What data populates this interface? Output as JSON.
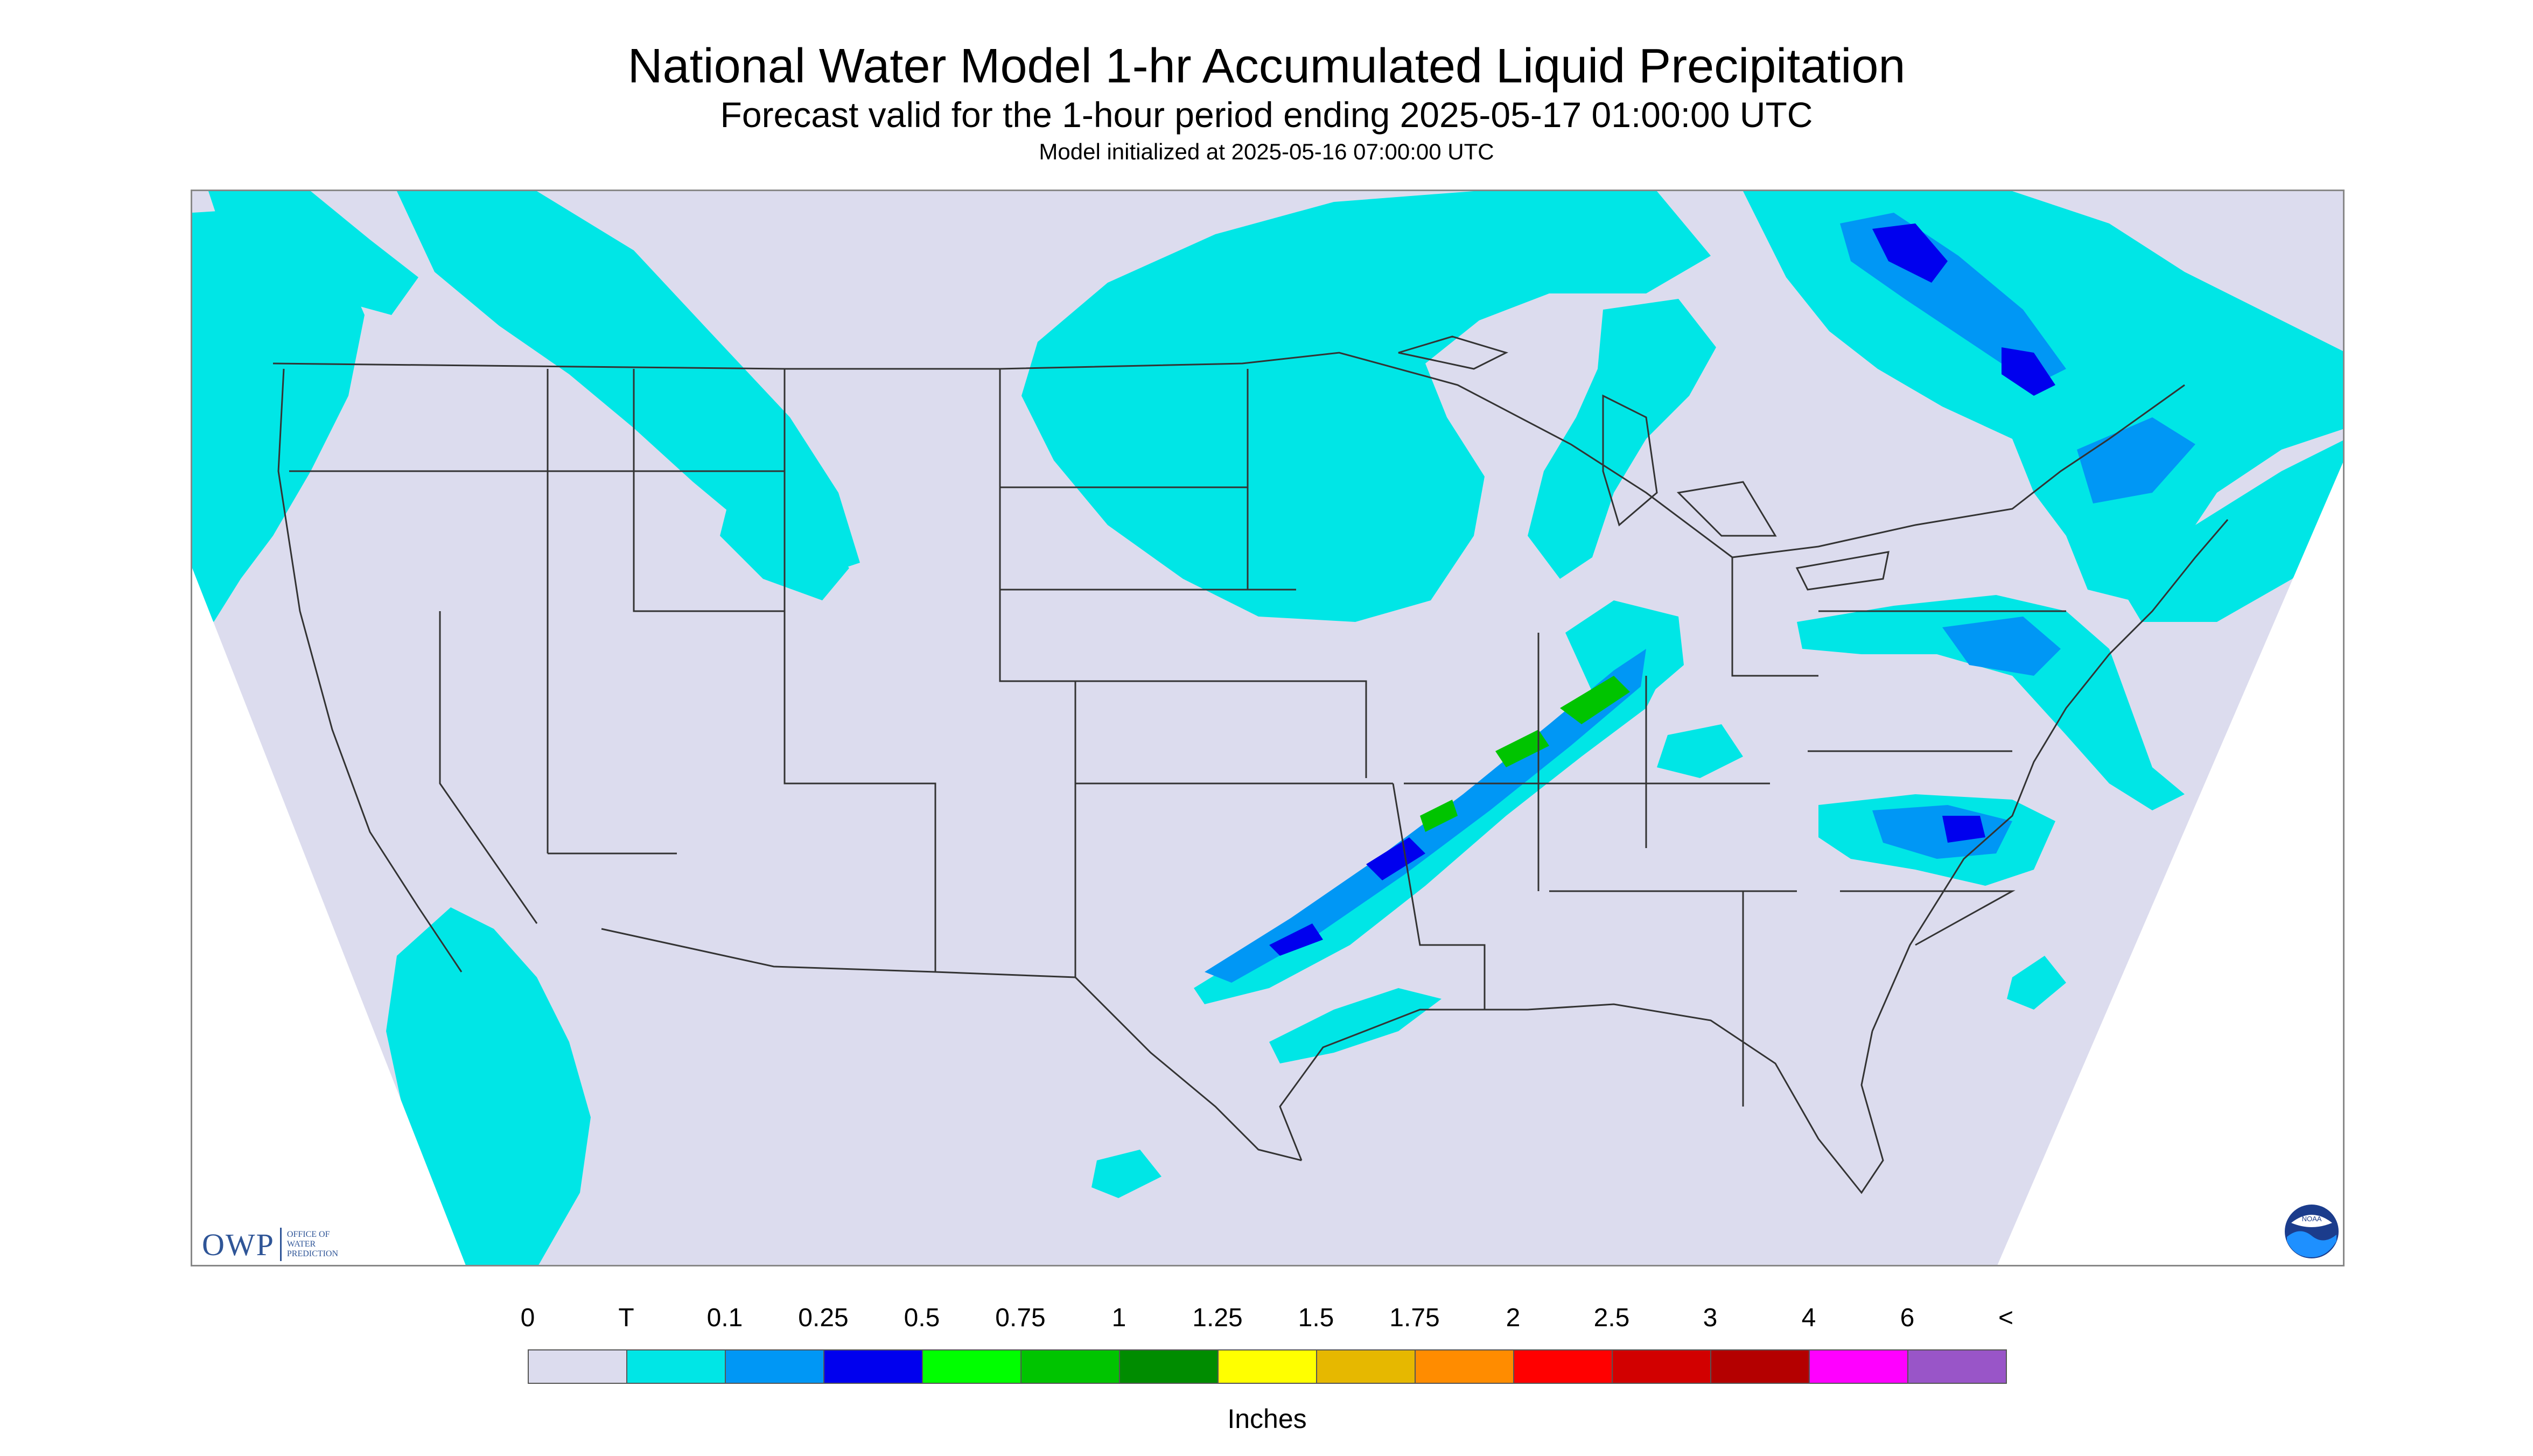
{
  "header": {
    "title": "National Water Model 1-hr Accumulated Liquid Precipitation",
    "subtitle": "Forecast valid for the 1-hour period ending 2025-05-17 01:00:00 UTC",
    "init_line": "Model initialized at 2025-05-16 07:00:00 UTC"
  },
  "map": {
    "projection": "conus-lambert",
    "background_color": "#dcdcee",
    "outside_color": "#ffffff",
    "line_color": "#333333",
    "precip_regions": [
      {
        "name": "northwest-coast-band",
        "intensity": "T"
      },
      {
        "name": "northern-rockies-band",
        "intensity": "T"
      },
      {
        "name": "upper-midwest-comma-shield",
        "intensity": "T"
      },
      {
        "name": "southern-california-offshore",
        "intensity": "T"
      },
      {
        "name": "mississippi-valley-squall-line",
        "intensity": "0.75"
      },
      {
        "name": "ohio-valley-band",
        "intensity": "0.5"
      },
      {
        "name": "mid-atlantic-band",
        "intensity": "0.25"
      },
      {
        "name": "carolina-coast-cluster",
        "intensity": "0.5"
      },
      {
        "name": "northeast-quebec-band",
        "intensity": "0.25"
      },
      {
        "name": "gulf-coast-band",
        "intensity": "T"
      },
      {
        "name": "mexico-scattered",
        "intensity": "T"
      }
    ]
  },
  "logos": {
    "owp_mark": "OWP",
    "owp_lines": [
      "OFFICE OF",
      "WATER",
      "PREDICTION"
    ],
    "noaa_text": "NOAA"
  },
  "legend": {
    "units": "Inches",
    "labels": [
      "0",
      "T",
      "0.1",
      "0.25",
      "0.5",
      "0.75",
      "1",
      "1.25",
      "1.5",
      "1.75",
      "2",
      "2.5",
      "3",
      "4",
      "6",
      "<"
    ],
    "colors": [
      "#dcdcee",
      "#00e6e6",
      "#0097f5",
      "#0000ee",
      "#00ff00",
      "#00c400",
      "#008c00",
      "#ffff00",
      "#e6b800",
      "#ff8c00",
      "#ff0000",
      "#d20000",
      "#b40000",
      "#ff00ff",
      "#9955c8"
    ]
  }
}
